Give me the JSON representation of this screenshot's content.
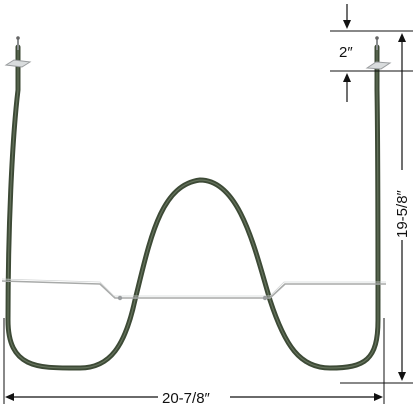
{
  "figure": {
    "subject": "oven bake element",
    "dimensions": {
      "top_gap": "2″",
      "height": "19-5/8″",
      "width": "20-7/8″"
    }
  },
  "colors": {
    "element": "#3d4a36",
    "element_highlight": "#6f7d66",
    "support_bar": "#a8aaa9",
    "bracket": "#b9bcbd",
    "dimension_line": "#111111",
    "background": "#ffffff"
  }
}
